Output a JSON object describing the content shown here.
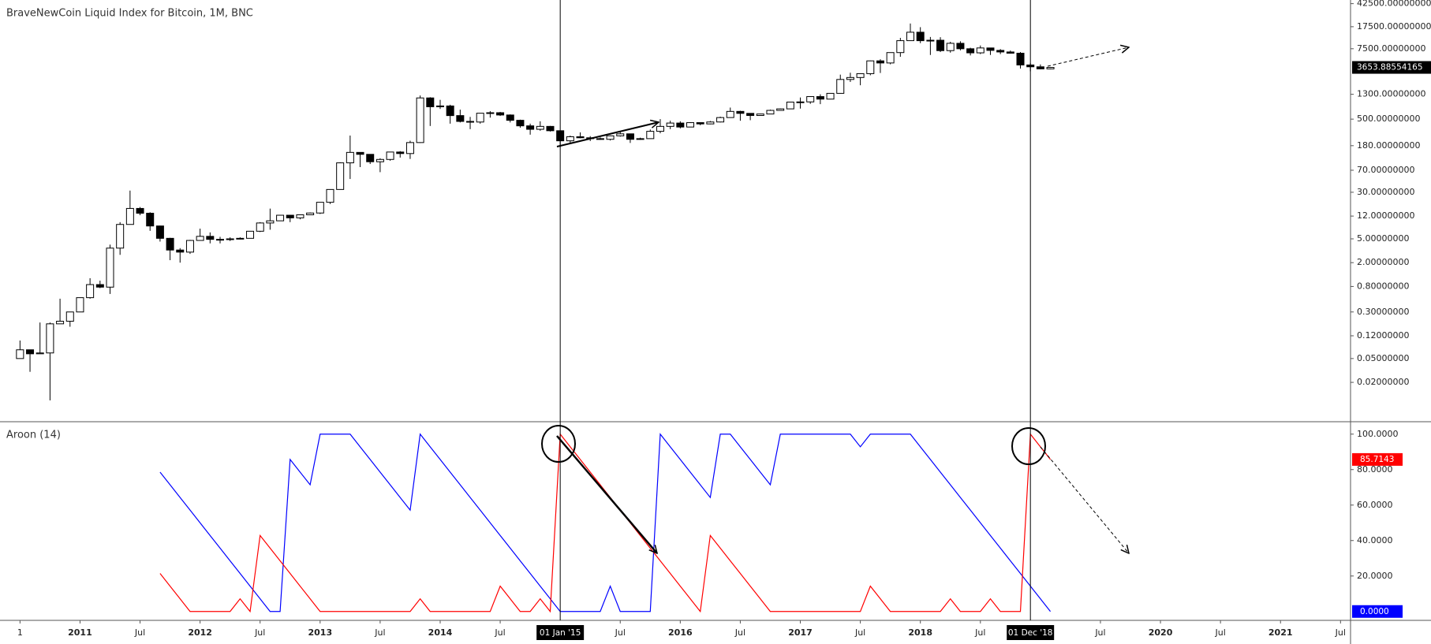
{
  "chart_data": [
    {
      "type": "candlestick",
      "title": "BraveNewCoin Liquid Index for Bitcoin, 1M, BNC",
      "log_scale": true,
      "grid": false,
      "up_color": "#ffffff",
      "down_color": "#000000",
      "outline_color": "#000000",
      "x": [
        "2010-07",
        "2010-08",
        "2010-09",
        "2010-10",
        "2010-11",
        "2010-12",
        "2011-01",
        "2011-02",
        "2011-03",
        "2011-04",
        "2011-05",
        "2011-06",
        "2011-07",
        "2011-08",
        "2011-09",
        "2011-10",
        "2011-11",
        "2011-12",
        "2012-01",
        "2012-02",
        "2012-03",
        "2012-04",
        "2012-05",
        "2012-06",
        "2012-07",
        "2012-08",
        "2012-09",
        "2012-10",
        "2012-11",
        "2012-12",
        "2013-01",
        "2013-02",
        "2013-03",
        "2013-04",
        "2013-05",
        "2013-06",
        "2013-07",
        "2013-08",
        "2013-09",
        "2013-10",
        "2013-11",
        "2013-12",
        "2014-01",
        "2014-02",
        "2014-03",
        "2014-04",
        "2014-05",
        "2014-06",
        "2014-07",
        "2014-08",
        "2014-09",
        "2014-10",
        "2014-11",
        "2014-12",
        "2015-01",
        "2015-02",
        "2015-03",
        "2015-04",
        "2015-05",
        "2015-06",
        "2015-07",
        "2015-08",
        "2015-09",
        "2015-10",
        "2015-11",
        "2015-12",
        "2016-01",
        "2016-02",
        "2016-03",
        "2016-04",
        "2016-05",
        "2016-06",
        "2016-07",
        "2016-08",
        "2016-09",
        "2016-10",
        "2016-11",
        "2016-12",
        "2017-01",
        "2017-02",
        "2017-03",
        "2017-04",
        "2017-05",
        "2017-06",
        "2017-07",
        "2017-08",
        "2017-09",
        "2017-10",
        "2017-11",
        "2017-12",
        "2018-01",
        "2018-02",
        "2018-03",
        "2018-04",
        "2018-05",
        "2018-06",
        "2018-07",
        "2018-08",
        "2018-09",
        "2018-10",
        "2018-11",
        "2018-12",
        "2019-01",
        "2019-02"
      ],
      "open": [
        0.05,
        0.07,
        0.06,
        0.062,
        0.19,
        0.21,
        0.3,
        0.52,
        0.86,
        0.78,
        3.5,
        8.7,
        16.1,
        13.4,
        8.2,
        5.1,
        3.25,
        3.0,
        4.7,
        5.5,
        4.9,
        4.9,
        5.0,
        5.1,
        6.7,
        9.2,
        10.0,
        12.4,
        11.2,
        12.6,
        13.5,
        20.4,
        33.4,
        93,
        139,
        129,
        97,
        106,
        141,
        133,
        203,
        1130,
        805,
        830,
        573,
        458,
        447,
        628,
        640,
        586,
        478,
        386,
        338,
        378,
        320,
        217,
        254,
        244,
        236,
        230,
        263,
        284,
        230,
        236,
        313,
        378,
        430,
        369,
        437,
        416,
        448,
        531,
        673,
        624,
        575,
        609,
        700,
        742,
        963,
        970,
        1190,
        1080,
        1348,
        2300,
        2480,
        2875,
        4703,
        4338,
        6468,
        10233,
        14156,
        10221,
        10397,
        6973,
        9240,
        7494,
        6404,
        7730,
        7037,
        6625,
        6318,
        4017,
        3742,
        3457
      ],
      "high": [
        0.1,
        0.07,
        0.2,
        0.2,
        0.5,
        0.3,
        0.5,
        1.1,
        1.0,
        4,
        9.5,
        32,
        17,
        13.9,
        8.3,
        5.2,
        3.5,
        4.8,
        7.4,
        6.4,
        5.4,
        5.3,
        5.3,
        6.7,
        9.5,
        16,
        12.5,
        12.6,
        12.6,
        13.8,
        20.5,
        33.4,
        95,
        266,
        140,
        130,
        111,
        141,
        146,
        218,
        1242,
        1163,
        1050,
        870,
        720,
        545,
        630,
        680,
        660,
        600,
        490,
        420,
        460,
        385,
        320,
        265,
        300,
        260,
        248,
        268,
        315,
        285,
        245,
        335,
        500,
        470,
        460,
        445,
        440,
        465,
        550,
        780,
        690,
        630,
        615,
        720,
        755,
        970,
        1150,
        1200,
        1300,
        1350,
        2770,
        2980,
        2920,
        4760,
        5000,
        6470,
        11400,
        19800,
        17200,
        11800,
        11700,
        9800,
        10000,
        7800,
        8500,
        7760,
        7400,
        7000,
        6600,
        4300,
        4100,
        3700
      ],
      "low": [
        0.05,
        0.03,
        0.06,
        0.01,
        0.19,
        0.17,
        0.3,
        0.5,
        0.75,
        0.6,
        2.7,
        8.7,
        12.4,
        6.8,
        4.5,
        2.2,
        2.0,
        2.8,
        4.7,
        4.2,
        4.2,
        4.6,
        4.9,
        5.1,
        6.5,
        7.1,
        9.9,
        9.5,
        10.6,
        12.5,
        13.0,
        19.1,
        33.2,
        50,
        79,
        89,
        65,
        101,
        114,
        108,
        200,
        384,
        740,
        420,
        440,
        340,
        420,
        530,
        565,
        440,
        360,
        275,
        320,
        310,
        170,
        200,
        240,
        215,
        225,
        220,
        255,
        200,
        225,
        235,
        290,
        340,
        350,
        365,
        395,
        410,
        440,
        525,
        470,
        480,
        570,
        605,
        690,
        740,
        750,
        900,
        890,
        1070,
        1340,
        2090,
        1840,
        2700,
        2950,
        4120,
        5500,
        10100,
        9300,
        5900,
        6600,
        6450,
        7050,
        5800,
        6100,
        5900,
        6100,
        6200,
        3500,
        3150,
        3400,
        3400
      ],
      "close": [
        0.07,
        0.06,
        0.062,
        0.19,
        0.21,
        0.3,
        0.52,
        0.86,
        0.78,
        3.5,
        8.7,
        16.1,
        13.4,
        8.2,
        5.1,
        3.25,
        3.0,
        4.7,
        5.5,
        4.9,
        4.9,
        5.0,
        5.1,
        6.7,
        9.2,
        10.0,
        12.4,
        11.2,
        12.6,
        13.5,
        20.4,
        33.4,
        93,
        139,
        129,
        97,
        106,
        141,
        133,
        203,
        1130,
        805,
        830,
        573,
        458,
        447,
        628,
        640,
        586,
        478,
        386,
        338,
        378,
        320,
        217,
        254,
        244,
        236,
        230,
        263,
        284,
        230,
        236,
        313,
        378,
        430,
        369,
        437,
        416,
        448,
        531,
        673,
        624,
        575,
        609,
        700,
        742,
        963,
        970,
        1190,
        1080,
        1348,
        2300,
        2480,
        2875,
        4703,
        4338,
        6468,
        10233,
        14156,
        10221,
        10397,
        6973,
        9240,
        7494,
        6404,
        7730,
        7037,
        6625,
        6318,
        4017,
        3742,
        3457,
        3653.88554165
      ],
      "xlim": [
        "2010-05",
        "2021-08"
      ],
      "xticks": [
        {
          "value": "2010-07",
          "label": "1"
        },
        {
          "value": "2011-01",
          "label": "2011"
        },
        {
          "value": "2011-07",
          "label": "Jul"
        },
        {
          "value": "2012-01",
          "label": "2012"
        },
        {
          "value": "2012-07",
          "label": "Jul"
        },
        {
          "value": "2013-01",
          "label": "2013"
        },
        {
          "value": "2013-07",
          "label": "Jul"
        },
        {
          "value": "2014-01",
          "label": "2014"
        },
        {
          "value": "2014-07",
          "label": "Jul"
        },
        {
          "value": "2015-07",
          "label": "Jul"
        },
        {
          "value": "2016-01",
          "label": "2016"
        },
        {
          "value": "2016-07",
          "label": "Jul"
        },
        {
          "value": "2017-01",
          "label": "2017"
        },
        {
          "value": "2017-07",
          "label": "Jul"
        },
        {
          "value": "2018-01",
          "label": "2018"
        },
        {
          "value": "2018-07",
          "label": "Jul"
        },
        {
          "value": "2019-07",
          "label": "Jul"
        },
        {
          "value": "2020-01",
          "label": "2020"
        },
        {
          "value": "2020-07",
          "label": "Jul"
        },
        {
          "value": "2021-01",
          "label": "2021"
        },
        {
          "value": "2021-07",
          "label": "Jul"
        }
      ],
      "crosshairs": [
        {
          "x": "2015-01",
          "label": "01 Jan '15"
        },
        {
          "x": "2018-12",
          "label": "01 Dec '18"
        }
      ],
      "ylim": [
        0.0044,
        48900
      ],
      "yticks": [
        {
          "value": 42500,
          "label": "42500.00000000"
        },
        {
          "value": 17500,
          "label": "17500.00000000"
        },
        {
          "value": 7500,
          "label": "7500.00000000"
        },
        {
          "value": 1300,
          "label": "1300.00000000"
        },
        {
          "value": 500,
          "label": "500.00000000"
        },
        {
          "value": 180,
          "label": "180.00000000"
        },
        {
          "value": 70,
          "label": "70.00000000"
        },
        {
          "value": 30,
          "label": "30.00000000"
        },
        {
          "value": 12,
          "label": "12.00000000"
        },
        {
          "value": 5,
          "label": "5.00000000"
        },
        {
          "value": 2,
          "label": "2.00000000"
        },
        {
          "value": 0.8,
          "label": "0.80000000"
        },
        {
          "value": 0.3,
          "label": "0.30000000"
        },
        {
          "value": 0.12,
          "label": "0.12000000"
        },
        {
          "value": 0.05,
          "label": "0.05000000"
        },
        {
          "value": 0.02,
          "label": "0.02000000"
        }
      ]
    },
    {
      "type": "line",
      "title": "Aroon (14)",
      "grid": false,
      "x": [
        "2011-09",
        "2011-10",
        "2011-11",
        "2011-12",
        "2012-01",
        "2012-02",
        "2012-03",
        "2012-04",
        "2012-05",
        "2012-06",
        "2012-07",
        "2012-08",
        "2012-09",
        "2012-10",
        "2012-11",
        "2012-12",
        "2013-01",
        "2013-02",
        "2013-03",
        "2013-04",
        "2013-05",
        "2013-06",
        "2013-07",
        "2013-08",
        "2013-09",
        "2013-10",
        "2013-11",
        "2013-12",
        "2014-01",
        "2014-02",
        "2014-03",
        "2014-04",
        "2014-05",
        "2014-06",
        "2014-07",
        "2014-08",
        "2014-09",
        "2014-10",
        "2014-11",
        "2014-12",
        "2015-01",
        "2015-02",
        "2015-03",
        "2015-04",
        "2015-05",
        "2015-06",
        "2015-07",
        "2015-08",
        "2015-09",
        "2015-10",
        "2015-11",
        "2015-12",
        "2016-01",
        "2016-02",
        "2016-03",
        "2016-04",
        "2016-05",
        "2016-06",
        "2016-07",
        "2016-08",
        "2016-09",
        "2016-10",
        "2016-11",
        "2016-12",
        "2017-01",
        "2017-02",
        "2017-03",
        "2017-04",
        "2017-05",
        "2017-06",
        "2017-07",
        "2017-08",
        "2017-09",
        "2017-10",
        "2017-11",
        "2017-12",
        "2018-01",
        "2018-02",
        "2018-03",
        "2018-04",
        "2018-05",
        "2018-06",
        "2018-07",
        "2018-08",
        "2018-09",
        "2018-10",
        "2018-11",
        "2018-12",
        "2019-01",
        "2019-02"
      ],
      "series": [
        {
          "name": "Aroon Up",
          "color": "#0000ff",
          "last_value_label": "0.0000",
          "values": [
            78.5714,
            71.4286,
            64.2857,
            57.1429,
            50,
            42.8571,
            35.7143,
            28.5714,
            21.4286,
            14.2857,
            7.1429,
            0,
            0,
            85.7143,
            78.5714,
            71.4286,
            100,
            100,
            100,
            100,
            92.8571,
            85.7143,
            78.5714,
            71.4286,
            64.2857,
            57.1429,
            100,
            92.8571,
            85.7143,
            78.5714,
            71.4286,
            64.2857,
            57.1429,
            50,
            42.8571,
            35.7143,
            28.5714,
            21.4286,
            14.2857,
            7.1429,
            0,
            0,
            0,
            0,
            0,
            14.2857,
            0,
            0,
            0,
            0,
            100,
            92.8571,
            85.7143,
            78.5714,
            71.4286,
            64.2857,
            100,
            100,
            92.8571,
            85.7143,
            78.5714,
            71.4286,
            100,
            100,
            100,
            100,
            100,
            100,
            100,
            100,
            92.8571,
            100,
            100,
            100,
            100,
            100,
            92.8571,
            85.7143,
            78.5714,
            71.4286,
            64.2857,
            57.1429,
            50,
            42.8571,
            35.7143,
            28.5714,
            21.4286,
            14.2857,
            7.1429,
            0
          ]
        },
        {
          "name": "Aroon Down",
          "color": "#ff0000",
          "last_value_label": "85.7143",
          "values": [
            21.4286,
            14.2857,
            7.1429,
            0,
            0,
            0,
            0,
            0,
            7.1429,
            0,
            42.8571,
            35.7143,
            28.5714,
            21.4286,
            14.2857,
            7.1429,
            0,
            0,
            0,
            0,
            0,
            0,
            0,
            0,
            0,
            0,
            7.1429,
            0,
            0,
            0,
            0,
            0,
            0,
            0,
            14.2857,
            7.1429,
            0,
            0,
            7.1429,
            0,
            100,
            92.8571,
            85.7143,
            78.5714,
            71.4286,
            64.2857,
            57.1429,
            50,
            42.8571,
            35.7143,
            28.5714,
            21.4286,
            14.2857,
            7.1429,
            0,
            42.8571,
            35.7143,
            28.5714,
            21.4286,
            14.2857,
            7.1429,
            0,
            0,
            0,
            0,
            0,
            0,
            0,
            0,
            0,
            0,
            14.2857,
            7.1429,
            0,
            0,
            0,
            0,
            0,
            0,
            7.1429,
            0,
            0,
            0,
            7.1429,
            0,
            0,
            0,
            100,
            92.8571,
            85.7143
          ]
        }
      ],
      "ylim": [
        -5,
        107
      ],
      "yticks": [
        {
          "value": 100,
          "label": "100.0000"
        },
        {
          "value": 80,
          "label": "80.0000"
        },
        {
          "value": 60,
          "label": "60.0000"
        },
        {
          "value": 40,
          "label": "40.0000"
        },
        {
          "value": 20,
          "label": "20.0000"
        }
      ]
    }
  ]
}
